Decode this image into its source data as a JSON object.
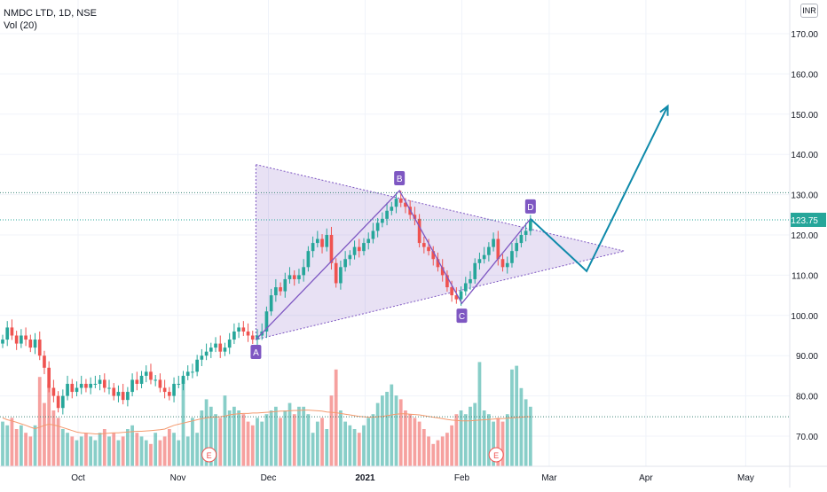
{
  "legend": {
    "symbol": "NMDC LTD, 1D, NSE",
    "volume": "Vol (20)"
  },
  "currency": "INR",
  "chart_data": {
    "type": "candlestick",
    "symbol": "NMDC LTD",
    "interval": "1D",
    "exchange": "NSE",
    "currency": "INR",
    "ylim": [
      62,
      176
    ],
    "y_ticks": [
      70,
      80,
      90,
      100,
      110,
      120,
      130,
      140,
      150,
      160,
      170
    ],
    "y_tick_labels": [
      "70.00",
      "80.00",
      "90.00",
      "100.00",
      "110.00",
      "120.00",
      "130.00",
      "140.00",
      "150.00",
      "160.00",
      "170.00"
    ],
    "last_price": 123.75,
    "last_price_label": "123.75",
    "resistance_level": 130.5,
    "volume_reference_level": 75.3,
    "x_labels": [
      {
        "text": "Oct",
        "date": "2020-10-01",
        "bold": false
      },
      {
        "text": "Nov",
        "date": "2020-11-02",
        "bold": false
      },
      {
        "text": "Dec",
        "date": "2020-12-01",
        "bold": false
      },
      {
        "text": "2021",
        "date": "2021-01-01",
        "bold": true
      },
      {
        "text": "Feb",
        "date": "2021-02-01",
        "bold": false
      },
      {
        "text": "Mar",
        "date": "2021-03-01",
        "bold": false
      },
      {
        "text": "Apr",
        "date": "2021-04-01",
        "bold": false
      },
      {
        "text": "May",
        "date": "2021-05-03",
        "bold": false
      }
    ],
    "colors": {
      "up": "#26a69a",
      "down": "#ef5350",
      "pattern": "#7e57c2",
      "projection": "#0f8aaa",
      "volume_ma": "#f49a6f"
    },
    "prices": [
      94,
      97,
      95,
      93,
      95,
      94,
      92,
      94,
      90,
      87,
      82,
      80,
      77,
      80,
      83,
      81,
      82,
      83,
      82,
      83,
      83,
      84,
      82,
      82,
      80,
      81,
      79,
      81,
      84,
      83,
      85,
      86,
      84,
      84,
      82,
      81,
      80,
      83,
      83,
      85,
      86,
      86,
      89,
      90,
      91,
      92,
      93,
      91,
      92,
      94,
      96,
      97,
      96,
      95,
      94,
      95,
      96,
      101,
      105,
      107,
      106,
      109,
      110,
      109,
      110,
      112,
      116,
      118,
      119,
      117,
      120,
      113,
      108,
      112,
      114,
      115,
      117,
      116,
      118,
      119,
      121,
      123,
      124,
      126,
      127,
      129,
      128,
      127,
      125,
      124,
      118,
      117,
      116,
      114,
      112,
      110,
      107,
      105,
      104,
      106,
      108,
      109,
      113,
      114,
      115,
      117,
      119,
      114,
      112,
      113,
      116,
      118,
      120,
      121,
      123.75
    ],
    "volumes": [
      74,
      73,
      75,
      72,
      73,
      71,
      70,
      73,
      86,
      79,
      84,
      77,
      75,
      72,
      71,
      70,
      69,
      70,
      71,
      70,
      69,
      71,
      72,
      70,
      71,
      69,
      70,
      72,
      73,
      71,
      70,
      69,
      68,
      71,
      69,
      70,
      72,
      71,
      69,
      86,
      70,
      75,
      71,
      77,
      80,
      78,
      76,
      75,
      81,
      77,
      78,
      77,
      76,
      74,
      73,
      75,
      74,
      76,
      77,
      78,
      75,
      77,
      79,
      76,
      78,
      78,
      76,
      71,
      74,
      75,
      72,
      81,
      88,
      77,
      74,
      73,
      72,
      71,
      73,
      75,
      76,
      79,
      81,
      82,
      84,
      81,
      80,
      77,
      76,
      75,
      74,
      72,
      70,
      68,
      69,
      70,
      71,
      73,
      76,
      77,
      76,
      78,
      79,
      90,
      77,
      76,
      74,
      75,
      74,
      76,
      88,
      89,
      83,
      80,
      78
    ],
    "volume_ma": [
      75,
      74.5,
      74.2,
      73.8,
      73.4,
      73,
      72.5,
      72.1,
      72.5,
      73,
      73.3,
      73.1,
      72.8,
      72.4,
      72,
      71.6,
      71.2,
      71,
      70.9,
      70.8,
      70.7,
      70.7,
      70.8,
      70.9,
      71,
      71,
      71.1,
      71.2,
      71.3,
      71.4,
      71.4,
      71.5,
      71.6,
      71.7,
      71.8,
      72,
      72.5,
      73,
      73.3,
      73.6,
      73.9,
      74.2,
      74.5,
      74.8,
      75,
      75.2,
      75.2,
      75.3,
      75.5,
      75.8,
      76,
      76.1,
      76.2,
      76.2,
      76.3,
      76.3,
      76.4,
      76.5,
      76.6,
      76.7,
      76.8,
      76.8,
      76.9,
      77,
      77,
      77.1,
      77.1,
      77,
      76.9,
      76.8,
      76.6,
      76.5,
      76.4,
      76.2,
      76,
      75.8,
      75.6,
      75.4,
      75.3,
      75.2,
      75.2,
      75.3,
      75.4,
      75.6,
      75.8,
      76,
      76.1,
      76.1,
      76,
      75.9,
      75.8,
      75.6,
      75.4,
      75.2,
      75,
      74.8,
      74.6,
      74.4,
      74.3,
      74.2,
      74.2,
      74.2,
      74.3,
      74.4,
      74.5,
      74.6,
      74.7,
      74.8,
      74.8,
      74.9,
      75,
      75.1,
      75.2,
      75.3,
      75.3
    ],
    "earnings_markers": [
      {
        "label": "E",
        "date": "2020-11-12"
      },
      {
        "label": "E",
        "date": "2021-02-12"
      }
    ],
    "pattern": {
      "type": "symmetrical triangle (ABCD)",
      "triangle": [
        {
          "date": "2020-11-27",
          "price": 137.5
        },
        {
          "date": "2021-03-25",
          "price": 116
        },
        {
          "date": "2020-11-27",
          "price": 94
        }
      ],
      "zigzag": [
        {
          "label": "A",
          "date": "2020-11-27",
          "price": 94
        },
        {
          "label": "B",
          "date": "2021-01-12",
          "price": 131
        },
        {
          "label": "C",
          "date": "2021-02-01",
          "price": 103
        },
        {
          "label": "D",
          "date": "2021-02-23",
          "price": 124
        }
      ],
      "projection": [
        {
          "date": "2021-02-23",
          "price": 124
        },
        {
          "date": "2021-03-13",
          "price": 111
        },
        {
          "date": "2021-04-08",
          "price": 152
        }
      ]
    }
  }
}
